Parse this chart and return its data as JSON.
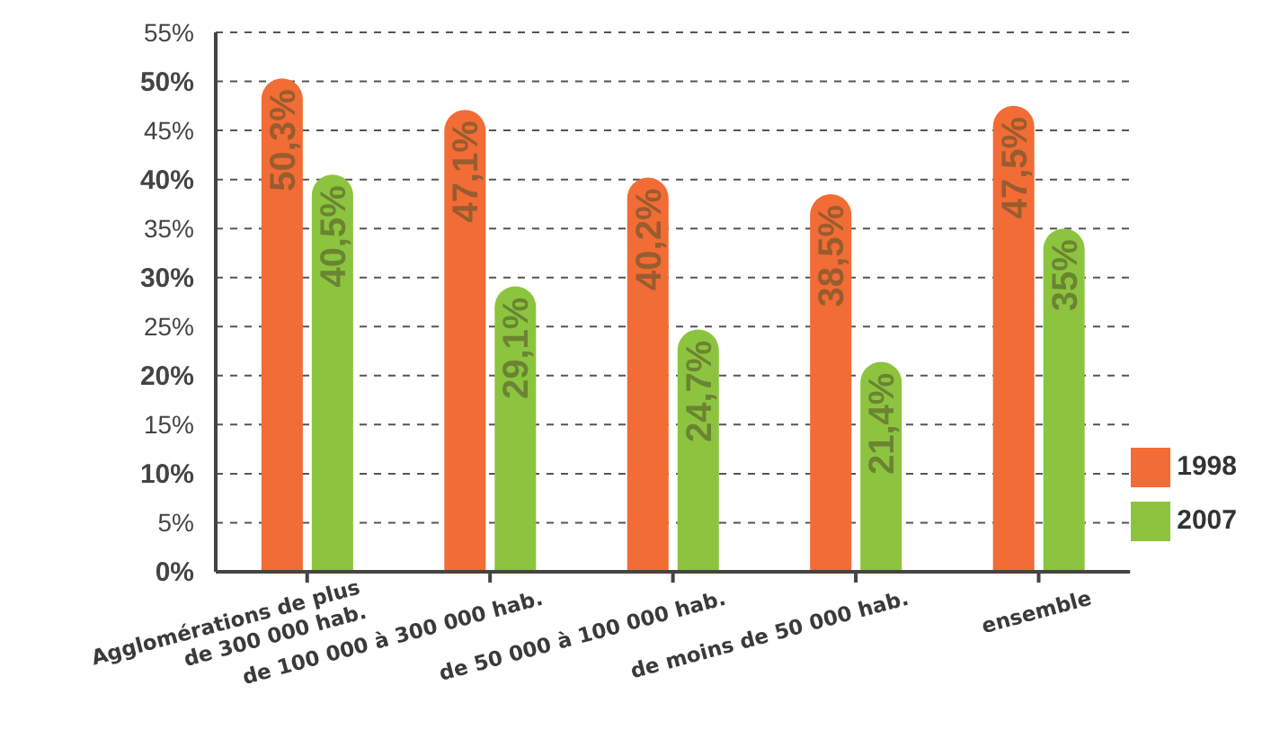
{
  "chart_data": {
    "type": "bar",
    "categories": [
      "Agglomérations de plus de 300 000 hab.",
      "de 100 000 à 300 000 hab.",
      "de 50 000 à 100 000 hab.",
      "de moins de 50 000 hab.",
      "ensemble"
    ],
    "series": [
      {
        "name": "1998",
        "color": "#f26c35",
        "values": [
          50.3,
          47.1,
          40.2,
          38.5,
          47.5
        ],
        "value_labels": [
          "50,3%",
          "47,1%",
          "40,2%",
          "38,5%",
          "47,5%"
        ]
      },
      {
        "name": "2007",
        "color": "#8cc43f",
        "values": [
          40.5,
          29.1,
          24.7,
          21.4,
          35
        ],
        "value_labels": [
          "40,5%",
          "29,1%",
          "24,7%",
          "21,4%",
          "35%"
        ]
      }
    ],
    "ylim": [
      0,
      55
    ],
    "yticks": [
      {
        "value": 0,
        "label": "0%"
      },
      {
        "value": 5,
        "label": "5%"
      },
      {
        "value": 10,
        "label": "10%"
      },
      {
        "value": 15,
        "label": "15%"
      },
      {
        "value": 20,
        "label": "20%"
      },
      {
        "value": 25,
        "label": "25%"
      },
      {
        "value": 30,
        "label": "30%"
      },
      {
        "value": 35,
        "label": "35%"
      },
      {
        "value": 40,
        "label": "40%"
      },
      {
        "value": 45,
        "label": "45%"
      },
      {
        "value": 50,
        "label": "50%"
      },
      {
        "value": 55,
        "label": "55%"
      }
    ],
    "grid": "y",
    "legend": "bottom right"
  }
}
